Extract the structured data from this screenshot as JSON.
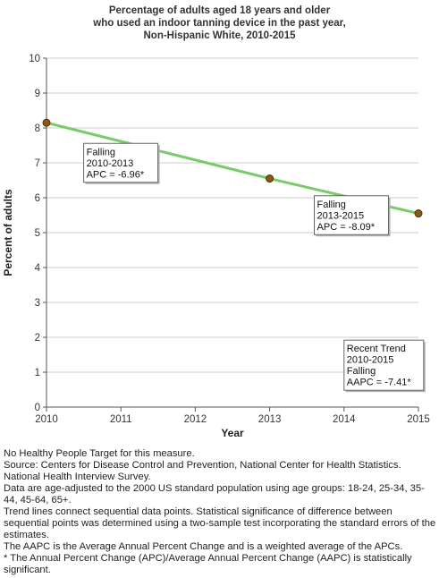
{
  "chart_data": {
    "type": "line",
    "title_lines": [
      "Percentage of adults aged 18 years and older",
      "who used an indoor tanning device in the past year,",
      "Non-Hispanic White,  2010-2015"
    ],
    "xlabel": "Year",
    "ylabel": "Percent of adults",
    "xlim": [
      2010,
      2015
    ],
    "ylim": [
      0,
      10
    ],
    "x_ticks": [
      "2010",
      "2011",
      "2012",
      "2013",
      "2014",
      "2015"
    ],
    "y_ticks": [
      "0",
      "1",
      "2",
      "3",
      "4",
      "5",
      "6",
      "7",
      "8",
      "9",
      "10"
    ],
    "grid": true,
    "points": [
      {
        "x": 2010,
        "y": 8.1
      },
      {
        "x": 2013,
        "y": 6.5
      },
      {
        "x": 2015,
        "y": 5.5
      }
    ],
    "trend_segments": [
      {
        "x0": 2010,
        "y0": 8.15,
        "x1": 2013,
        "y1": 6.55
      },
      {
        "x0": 2013,
        "y0": 6.55,
        "x1": 2015,
        "y1": 5.55
      }
    ],
    "annotations": [
      {
        "lines": [
          "Falling",
          "2010-2013",
          "APC = -6.96*"
        ],
        "anchor_year": 2010.5,
        "anchor_value": 7.0
      },
      {
        "lines": [
          "Falling",
          "2013-2015",
          "APC = -8.09*"
        ],
        "anchor_year": 2013.6,
        "anchor_value": 5.5
      },
      {
        "lines": [
          "Recent Trend",
          "2010-2015",
          "Falling",
          "AAPC = -7.41*"
        ],
        "anchor_year": 2014.0,
        "anchor_value": 1.2
      }
    ],
    "colors": {
      "trend_line": "#77cc66",
      "point_fill": "#8a5a14",
      "point_stroke": "#4a3008",
      "grid": "#cccccc",
      "plot_bg": "#ffffff",
      "axis": "#555555"
    }
  },
  "notes": [
    "No Healthy People Target for this measure.",
    "Source: Centers for Disease Control and Prevention, National Center for Health Statistics. National Health Interview Survey.",
    "Data are age-adjusted to the 2000 US standard population using age groups: 18-24, 25-34, 35-44, 45-64, 65+.",
    "Trend lines connect sequential data points. Statistical significance of difference between sequential points was determined using a two-sample test incorporating the standard errors of the estimates.",
    "The AAPC is the Average Annual Percent Change and is a weighted average of the APCs.",
    "* The Annual Percent Change (APC)/Average Annual Percent Change (AAPC) is statistically significant."
  ]
}
